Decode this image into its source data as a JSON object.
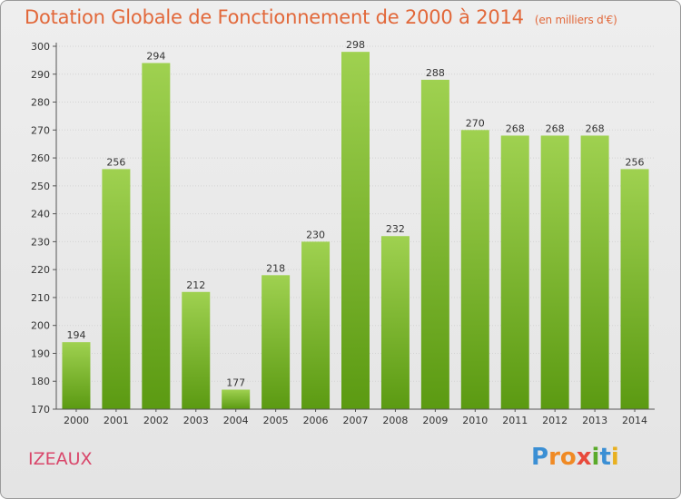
{
  "header": {
    "title": "Dotation Globale de Fonctionnement de 2000 à 2014",
    "unit": "(en milliers d'€)"
  },
  "footer": {
    "commune": "IZEAUX",
    "logo_letters": [
      "P",
      "r",
      "o",
      "x",
      "i",
      "t",
      "i"
    ]
  },
  "colors": {
    "bar_light": "#9fd150",
    "bar_dark": "#5b9a12",
    "text": "#333333",
    "grid": "#d4d4d4",
    "title": "#e2683a",
    "commune": "#d9466a"
  },
  "chart_data": {
    "type": "bar",
    "title": "Dotation Globale de Fonctionnement de 2000 à 2014",
    "subtitle": "(en milliers d'€)",
    "categories": [
      "2000",
      "2001",
      "2002",
      "2003",
      "2004",
      "2005",
      "2006",
      "2007",
      "2008",
      "2009",
      "2010",
      "2011",
      "2012",
      "2013",
      "2014"
    ],
    "values": [
      194,
      256,
      294,
      212,
      177,
      218,
      230,
      298,
      232,
      288,
      270,
      268,
      268,
      268,
      256
    ],
    "ylim": [
      170,
      300
    ],
    "yticks": [
      170,
      180,
      190,
      200,
      210,
      220,
      230,
      240,
      250,
      260,
      270,
      280,
      290,
      300
    ],
    "grid": true,
    "data_labels": true,
    "legend": "none"
  }
}
